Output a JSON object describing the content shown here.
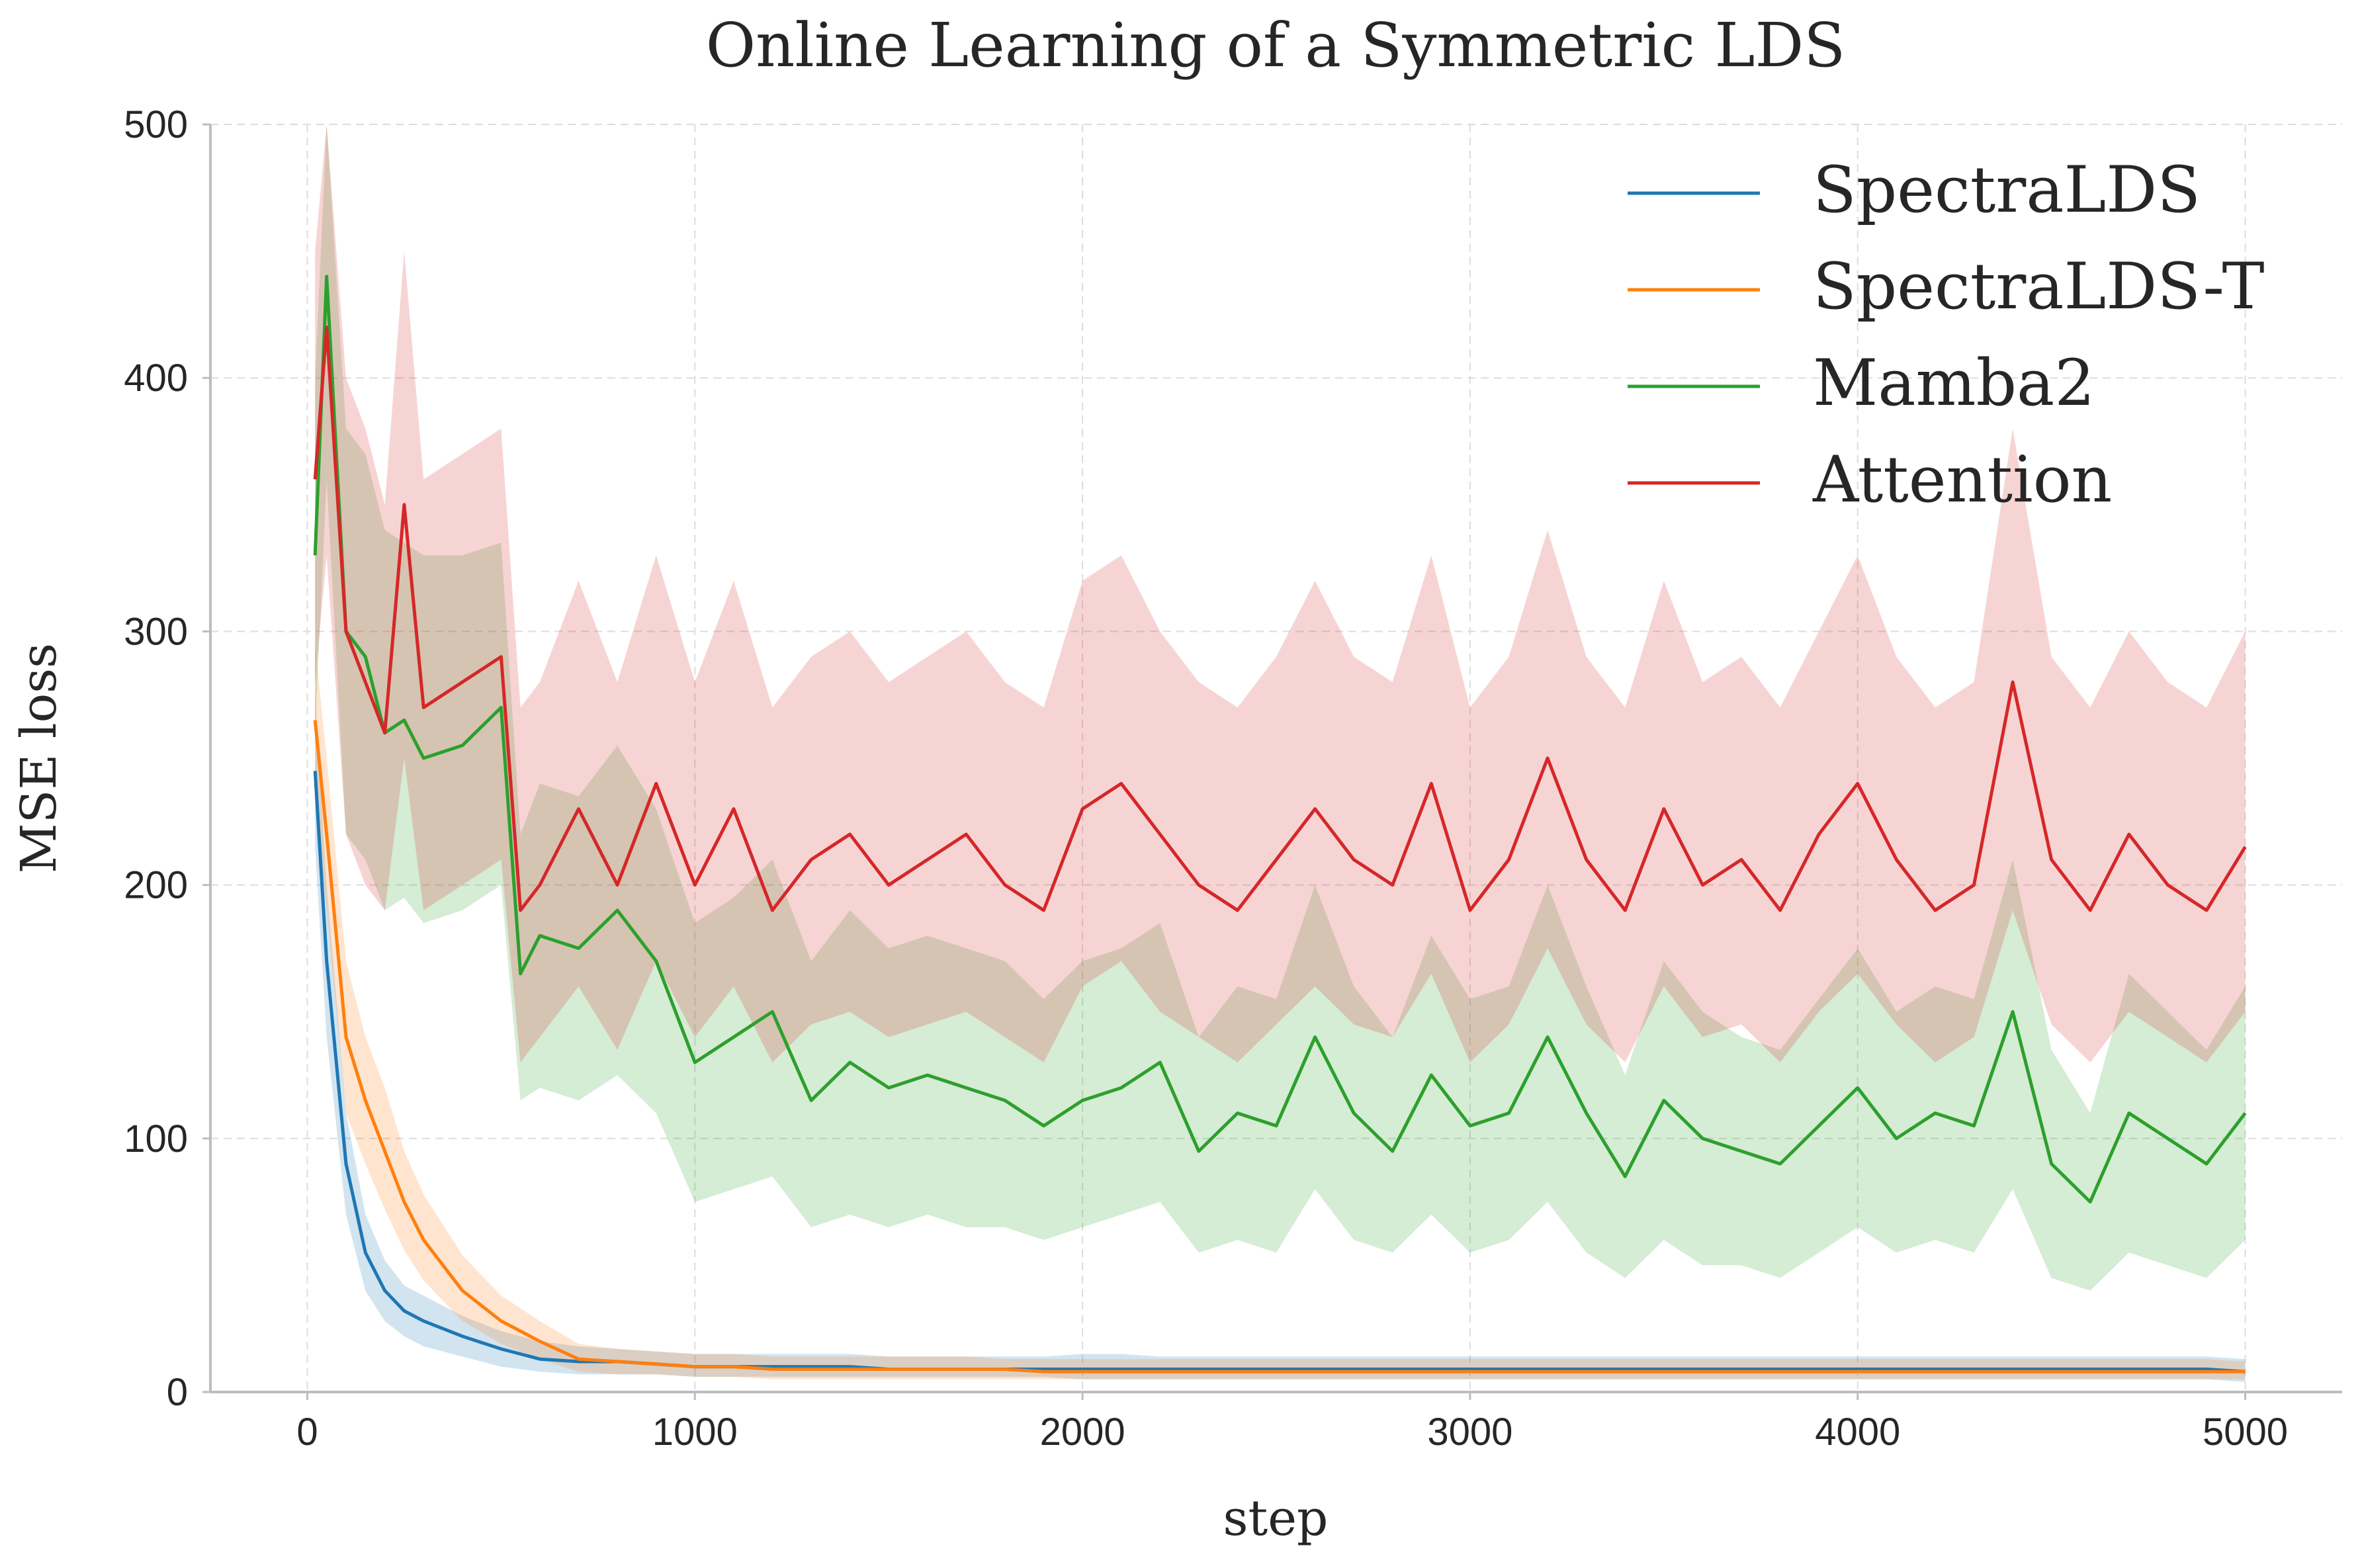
{
  "chart_data": {
    "type": "line",
    "title": "Online Learning of a Symmetric LDS",
    "xlabel": "step",
    "ylabel": "MSE loss",
    "xlim": [
      -250,
      5250
    ],
    "ylim": [
      0,
      500
    ],
    "xticks": [
      0,
      1000,
      2000,
      3000,
      4000,
      5000
    ],
    "yticks": [
      0,
      100,
      200,
      300,
      400,
      500
    ],
    "grid": true,
    "legend_position": "top-right",
    "x": [
      20,
      50,
      100,
      150,
      200,
      250,
      300,
      400,
      500,
      550,
      600,
      700,
      800,
      900,
      1000,
      1100,
      1200,
      1300,
      1400,
      1500,
      1600,
      1700,
      1800,
      1900,
      2000,
      2100,
      2200,
      2300,
      2400,
      2500,
      2600,
      2700,
      2800,
      2900,
      3000,
      3100,
      3200,
      3300,
      3400,
      3500,
      3600,
      3700,
      3800,
      3900,
      4000,
      4100,
      4200,
      4300,
      4400,
      4500,
      4600,
      4700,
      4800,
      4900,
      5000
    ],
    "series": [
      {
        "name": "SpectraLDS",
        "color": "#1f77b4",
        "values": [
          245,
          170,
          90,
          55,
          40,
          32,
          28,
          22,
          17,
          15,
          13,
          12,
          12,
          11,
          10,
          10,
          10,
          10,
          10,
          9,
          9,
          9,
          9,
          9,
          9,
          9,
          9,
          9,
          9,
          9,
          9,
          9,
          9,
          9,
          9,
          9,
          9,
          9,
          9,
          9,
          9,
          9,
          9,
          9,
          9,
          9,
          9,
          9,
          9,
          9,
          9,
          9,
          9,
          9,
          8
        ],
        "lower": [
          215,
          140,
          70,
          40,
          28,
          22,
          18,
          14,
          10,
          9,
          8,
          7,
          7,
          7,
          6,
          6,
          6,
          6,
          6,
          6,
          6,
          6,
          6,
          6,
          5,
          5,
          5,
          5,
          5,
          5,
          5,
          5,
          5,
          5,
          5,
          5,
          5,
          5,
          5,
          5,
          5,
          5,
          5,
          5,
          5,
          5,
          5,
          5,
          5,
          5,
          5,
          5,
          5,
          5,
          4
        ],
        "upper": [
          275,
          200,
          110,
          70,
          52,
          42,
          38,
          30,
          24,
          22,
          20,
          18,
          17,
          16,
          15,
          15,
          15,
          15,
          15,
          14,
          14,
          14,
          14,
          14,
          15,
          15,
          14,
          14,
          14,
          14,
          14,
          14,
          14,
          14,
          14,
          14,
          14,
          14,
          14,
          14,
          14,
          14,
          14,
          14,
          14,
          14,
          14,
          14,
          14,
          14,
          14,
          14,
          14,
          14,
          13
        ]
      },
      {
        "name": "SpectraLDS-T",
        "color": "#ff7f0e",
        "values": [
          265,
          220,
          140,
          115,
          95,
          75,
          60,
          40,
          28,
          24,
          20,
          13,
          12,
          11,
          10,
          10,
          9,
          9,
          9,
          9,
          9,
          9,
          9,
          8,
          8,
          8,
          8,
          8,
          8,
          8,
          8,
          8,
          8,
          8,
          8,
          8,
          8,
          8,
          8,
          8,
          8,
          8,
          8,
          8,
          8,
          8,
          8,
          8,
          8,
          8,
          8,
          8,
          8,
          8,
          8
        ],
        "lower": [
          235,
          190,
          110,
          90,
          72,
          56,
          44,
          28,
          19,
          16,
          13,
          8,
          7,
          7,
          6,
          6,
          5,
          5,
          5,
          5,
          5,
          5,
          5,
          5,
          5,
          5,
          5,
          5,
          5,
          5,
          5,
          5,
          5,
          5,
          5,
          5,
          5,
          5,
          5,
          5,
          5,
          5,
          5,
          5,
          5,
          5,
          5,
          5,
          5,
          5,
          5,
          5,
          5,
          5,
          5
        ],
        "upper": [
          295,
          250,
          170,
          140,
          120,
          95,
          78,
          54,
          38,
          33,
          28,
          19,
          17,
          16,
          15,
          15,
          14,
          14,
          14,
          14,
          14,
          14,
          13,
          13,
          13,
          13,
          13,
          13,
          13,
          13,
          13,
          13,
          13,
          13,
          13,
          13,
          13,
          13,
          13,
          13,
          13,
          13,
          13,
          13,
          13,
          13,
          13,
          13,
          13,
          13,
          13,
          13,
          13,
          13,
          12
        ]
      },
      {
        "name": "Mamba2",
        "color": "#2ca02c",
        "values": [
          330,
          440,
          300,
          290,
          260,
          265,
          250,
          255,
          270,
          165,
          180,
          175,
          190,
          170,
          130,
          140,
          150,
          115,
          130,
          120,
          125,
          120,
          115,
          105,
          115,
          120,
          130,
          95,
          110,
          105,
          140,
          110,
          95,
          125,
          105,
          110,
          140,
          110,
          85,
          115,
          100,
          95,
          90,
          105,
          120,
          100,
          110,
          105,
          150,
          90,
          75,
          110,
          100,
          90,
          110
        ],
        "lower": [
          260,
          360,
          220,
          210,
          190,
          195,
          185,
          190,
          200,
          115,
          120,
          115,
          125,
          110,
          75,
          80,
          85,
          65,
          70,
          65,
          70,
          65,
          65,
          60,
          65,
          70,
          75,
          55,
          60,
          55,
          80,
          60,
          55,
          70,
          55,
          60,
          75,
          55,
          45,
          60,
          50,
          50,
          45,
          55,
          65,
          55,
          60,
          55,
          80,
          45,
          40,
          55,
          50,
          45,
          60
        ],
        "upper": [
          400,
          520,
          380,
          370,
          340,
          335,
          330,
          330,
          335,
          220,
          240,
          235,
          255,
          230,
          185,
          195,
          210,
          170,
          190,
          175,
          180,
          175,
          170,
          155,
          170,
          175,
          185,
          140,
          160,
          155,
          200,
          160,
          140,
          180,
          155,
          160,
          200,
          160,
          125,
          170,
          150,
          140,
          135,
          155,
          175,
          150,
          160,
          155,
          210,
          135,
          110,
          165,
          150,
          135,
          160
        ]
      },
      {
        "name": "Attention",
        "color": "#d62728",
        "values": [
          360,
          420,
          300,
          280,
          260,
          350,
          270,
          280,
          290,
          190,
          200,
          230,
          200,
          240,
          200,
          230,
          190,
          210,
          220,
          200,
          210,
          220,
          200,
          190,
          230,
          240,
          220,
          200,
          190,
          210,
          230,
          210,
          200,
          240,
          190,
          210,
          250,
          210,
          190,
          230,
          200,
          210,
          190,
          220,
          240,
          210,
          190,
          200,
          280,
          210,
          190,
          220,
          200,
          190,
          215
        ],
        "lower": [
          280,
          330,
          220,
          200,
          190,
          250,
          190,
          200,
          210,
          130,
          140,
          160,
          135,
          170,
          140,
          160,
          130,
          145,
          150,
          140,
          145,
          150,
          140,
          130,
          160,
          170,
          150,
          140,
          130,
          145,
          160,
          145,
          140,
          165,
          130,
          145,
          175,
          145,
          130,
          160,
          140,
          145,
          130,
          150,
          165,
          145,
          130,
          140,
          190,
          145,
          130,
          150,
          140,
          130,
          150
        ],
        "upper": [
          450,
          520,
          400,
          380,
          350,
          450,
          360,
          370,
          380,
          270,
          280,
          320,
          280,
          330,
          280,
          320,
          270,
          290,
          300,
          280,
          290,
          300,
          280,
          270,
          320,
          330,
          300,
          280,
          270,
          290,
          320,
          290,
          280,
          330,
          270,
          290,
          340,
          290,
          270,
          320,
          280,
          290,
          270,
          300,
          330,
          290,
          270,
          280,
          380,
          290,
          270,
          300,
          280,
          270,
          300
        ]
      }
    ]
  }
}
